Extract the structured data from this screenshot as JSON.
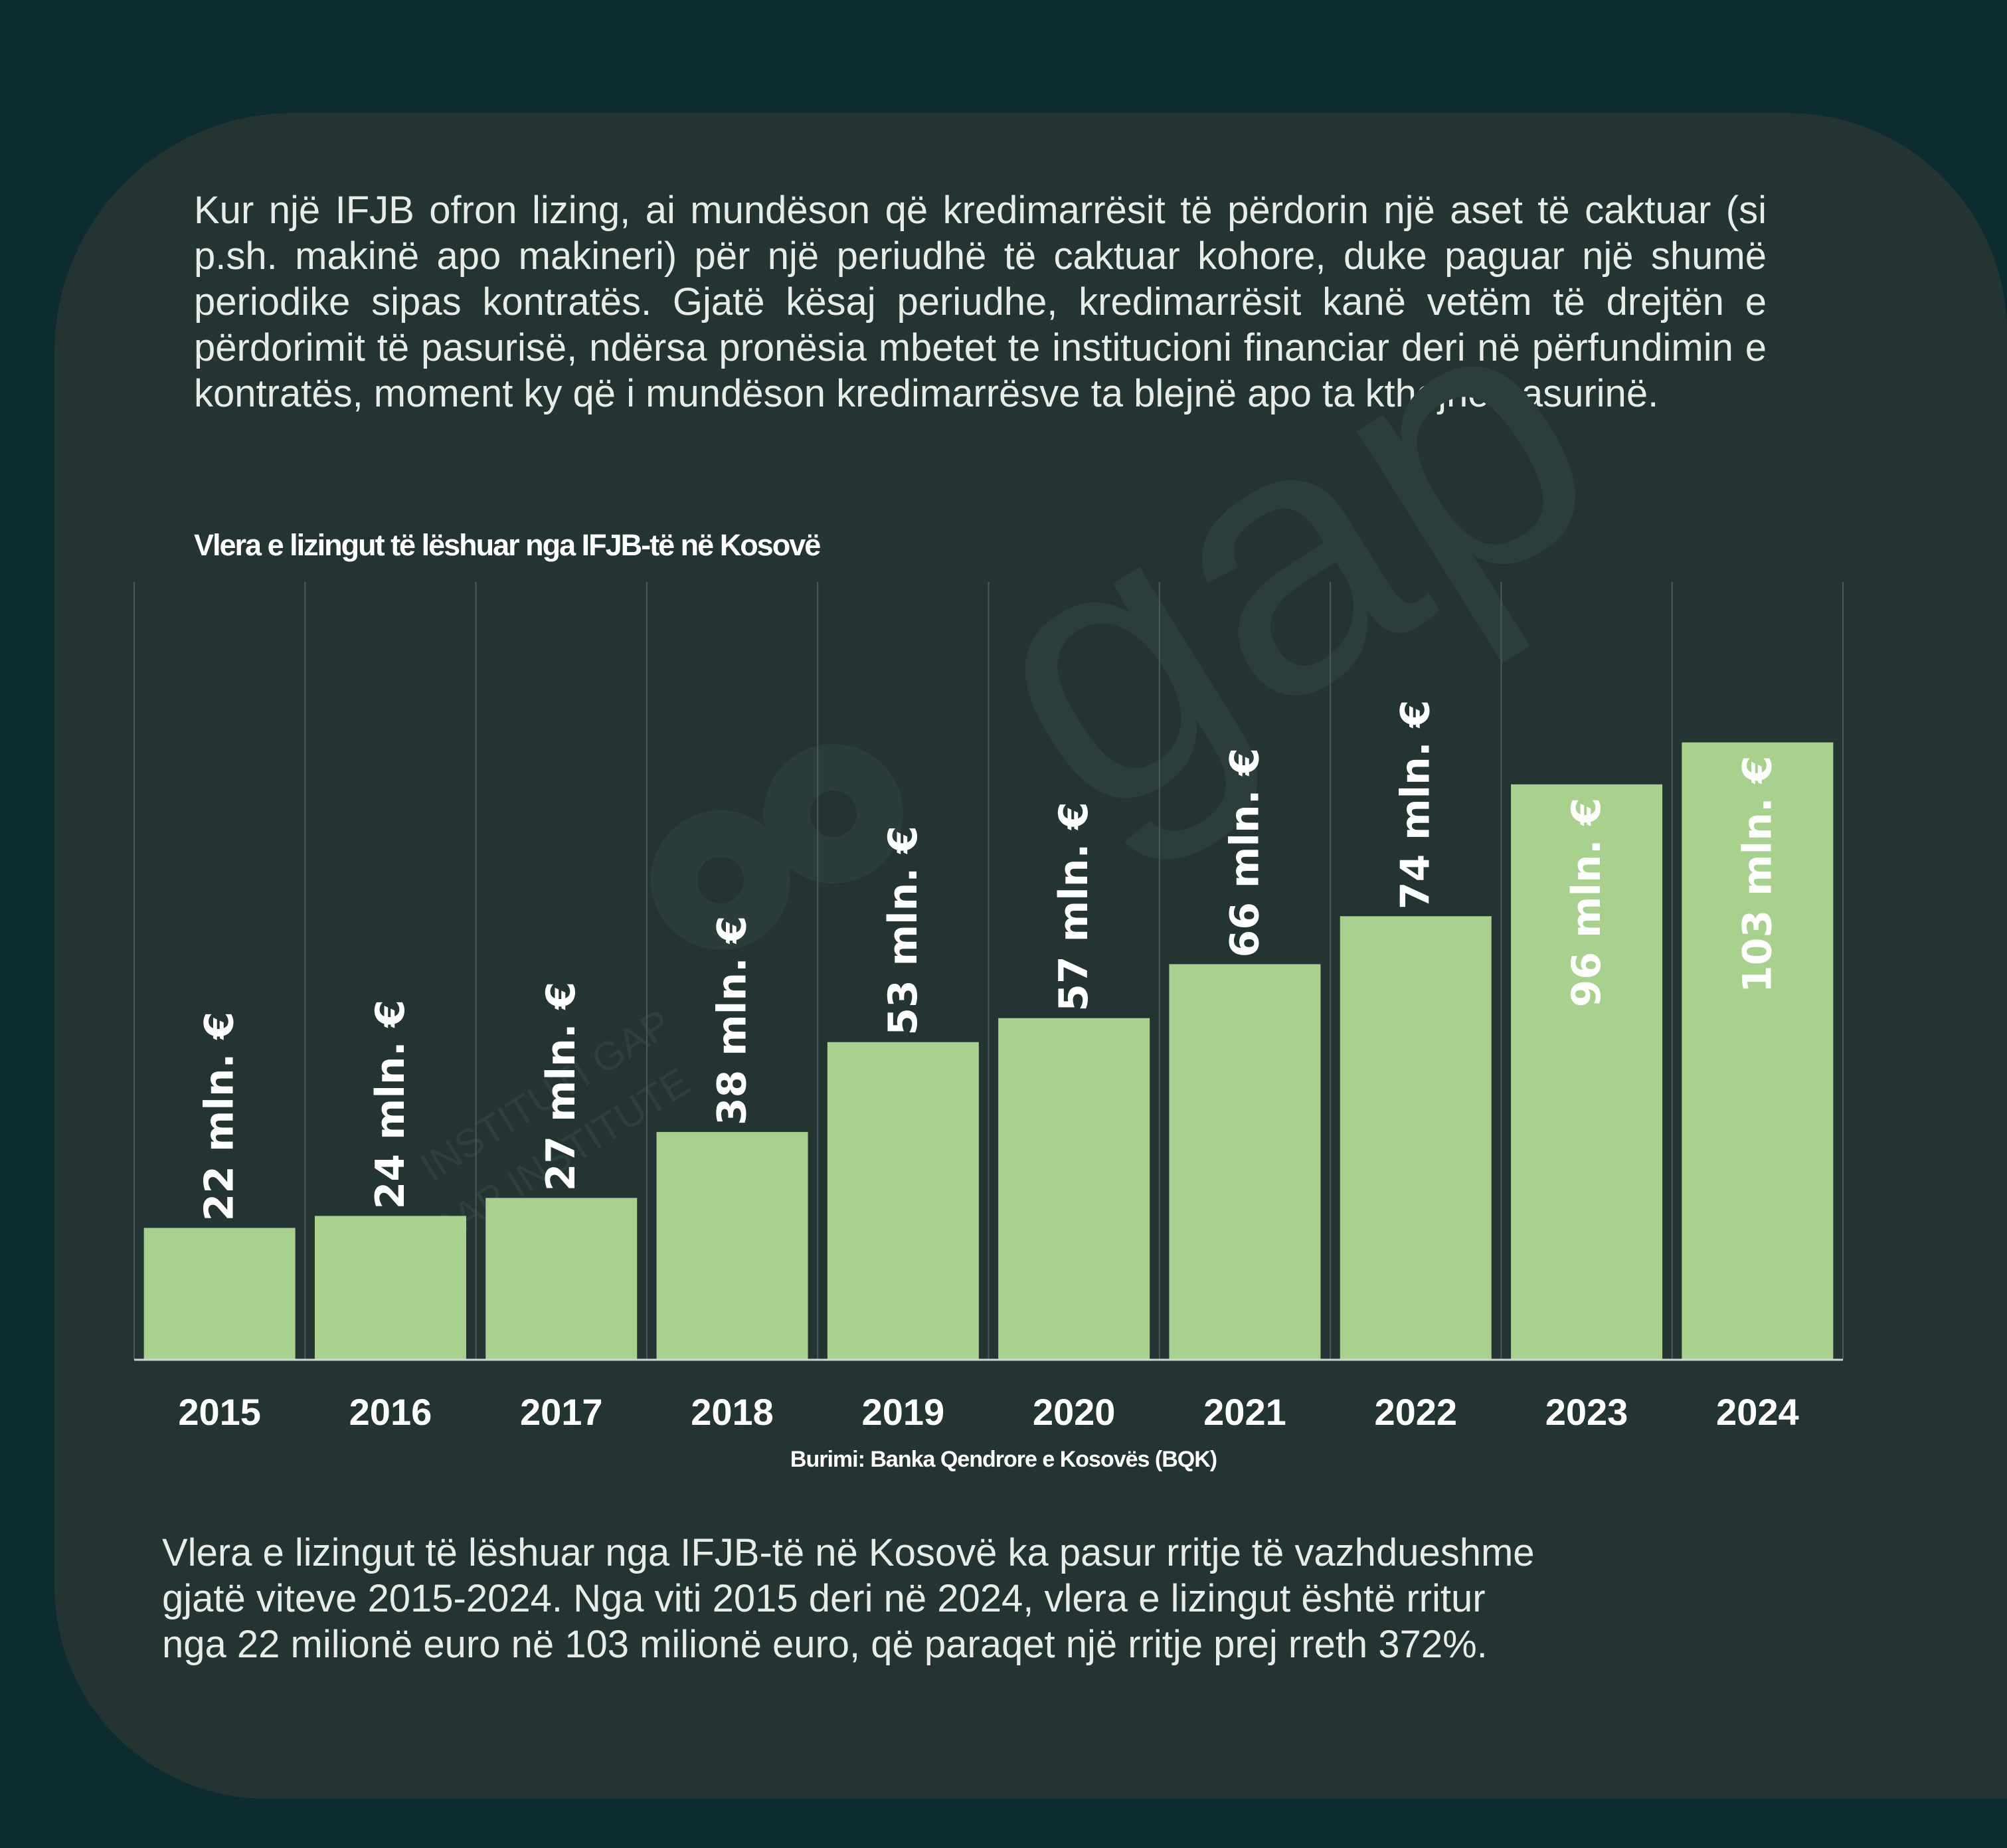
{
  "intro_text": "Kur një IFJB ofron lizing, ai mundëson që kredimarrësit të përdorin një aset të caktuar (si p.sh. makinë apo makineri) për një periudhë të caktuar kohore, duke paguar një shumë periodike sipas kontratës. Gjatë kësaj periudhe, kredimarrësit kanë vetëm të drejtën e përdorimit të pasurisë, ndërsa pronësia mbetet te institucioni financiar deri në përfundimin e kontratës, moment ky që i mundëson kredimarrësve ta blejnë apo ta kthejnë pasurinë.",
  "chart_data": {
    "type": "bar",
    "title": "Vlera  e lizingut të lëshuar nga IFJB-të në Kosovë",
    "categories": [
      "2015",
      "2016",
      "2017",
      "2018",
      "2019",
      "2020",
      "2021",
      "2022",
      "2023",
      "2024"
    ],
    "values": [
      22,
      24,
      27,
      38,
      53,
      57,
      66,
      74,
      96,
      103
    ],
    "value_labels": [
      "22 mln. €",
      "24 mln. €",
      "27 mln. €",
      "38 mln. €",
      "53 mln. €",
      "57 mln. €",
      "66 mln. €",
      "74 mln. €",
      "96 mln. €",
      "103 mln. €"
    ],
    "value_unit": "mln. €",
    "xlabel": "",
    "ylabel": "",
    "ylim": [
      0,
      130
    ],
    "grid": "vertical",
    "legend": "none",
    "bar_color": "#a9d18e",
    "label_color": "#ffffff",
    "source": "Burimi: Banka Qendrore e Kosovës (BQK)"
  },
  "summary_text": "Vlera e lizingut të lëshuar nga IFJB-të në Kosovë ka pasur rritje të vazhdueshme\ngjatë viteve 2015-2024. Nga viti 2015 deri në 2024, vlera e lizingut është rritur\nnga 22 milionë euro në 103 milionë euro, që paraqet një rritje prej rreth 372%.",
  "watermark": {
    "logo": "gap",
    "text_1": "INSTITUTI GAP",
    "text_2": "GAP INSTITUTE"
  },
  "colors": {
    "background": "#0c2c2f",
    "panel": "#233432",
    "bar": "#a9d18e",
    "text": "#ffffff"
  }
}
